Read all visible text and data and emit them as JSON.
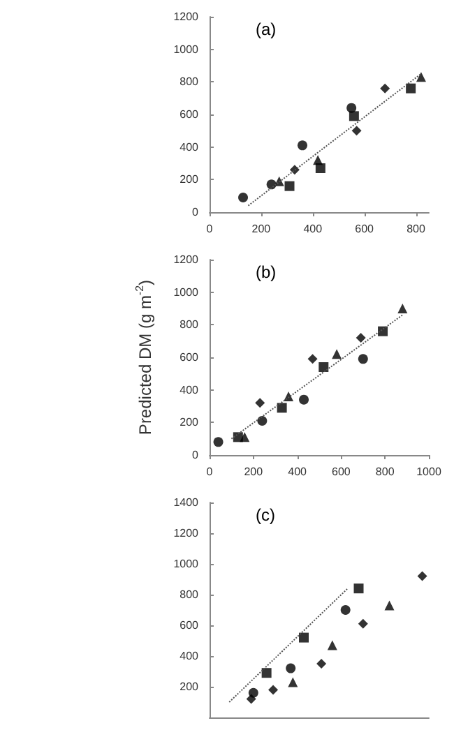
{
  "chart_data": [
    {
      "type": "scatter",
      "title": "(a)",
      "xlim": [
        0,
        850
      ],
      "xticks": [
        0,
        200,
        400,
        600,
        800
      ],
      "ylim": [
        0,
        1200
      ],
      "yticks": [
        0,
        200,
        400,
        600,
        800,
        1000,
        1200
      ],
      "grid": false,
      "series": [
        {
          "color": "#000000",
          "marker": "circle",
          "x": [
            130,
            240,
            360,
            550
          ],
          "values": [
            90,
            170,
            410,
            640
          ]
        },
        {
          "color": "#000000",
          "marker": "triangle",
          "x": [
            270,
            420,
            820
          ],
          "values": [
            190,
            320,
            830
          ]
        },
        {
          "color": "#000000",
          "marker": "square",
          "x": [
            310,
            430,
            560,
            780
          ],
          "values": [
            160,
            270,
            590,
            760
          ]
        },
        {
          "color": "#000000",
          "marker": "diamond",
          "x": [
            330,
            570,
            680
          ],
          "values": [
            260,
            500,
            760
          ]
        },
        {
          "type": "line",
          "color": "#555555",
          "marker": "none",
          "line_style": "dotted",
          "x": [
            150,
            820
          ],
          "values": [
            40,
            850
          ]
        }
      ]
    },
    {
      "type": "scatter",
      "title": "(b)",
      "ylabel": "Predicted DM (g m$^{-2}$)",
      "xlim": [
        0,
        1000
      ],
      "xticks": [
        0,
        200,
        400,
        600,
        800,
        1000
      ],
      "ylim": [
        0,
        1200
      ],
      "yticks": [
        0,
        200,
        400,
        600,
        800,
        1000,
        1200
      ],
      "grid": false,
      "series": [
        {
          "color": "#000000",
          "marker": "circle",
          "x": [
            40,
            240,
            430,
            700
          ],
          "values": [
            80,
            210,
            340,
            590
          ]
        },
        {
          "color": "#000000",
          "marker": "square",
          "x": [
            130,
            330,
            520,
            790
          ],
          "values": [
            110,
            290,
            540,
            760
          ]
        },
        {
          "color": "#000000",
          "marker": "triangle",
          "x": [
            160,
            360,
            580,
            880
          ],
          "values": [
            110,
            360,
            620,
            900
          ]
        },
        {
          "color": "#000000",
          "marker": "diamond",
          "x": [
            230,
            470,
            690
          ],
          "values": [
            320,
            590,
            720
          ]
        },
        {
          "type": "line",
          "color": "#555555",
          "marker": "none",
          "line_style": "dotted",
          "x": [
            100,
            880
          ],
          "values": [
            100,
            860
          ]
        }
      ]
    },
    {
      "type": "scatter",
      "title": "(c)",
      "xlim": [
        0,
        1000
      ],
      "ylim": [
        0,
        1400
      ],
      "yticks": [
        200,
        400,
        600,
        800,
        1000,
        1200,
        1400
      ],
      "tick_labels": "y",
      "grid": false,
      "series": [
        {
          "color": "#000000",
          "marker": "circle",
          "x": [
            200,
            370,
            620
          ],
          "values": [
            160,
            320,
            700
          ]
        },
        {
          "color": "#000000",
          "marker": "square",
          "x": [
            260,
            430,
            680
          ],
          "values": [
            290,
            520,
            840
          ]
        },
        {
          "color": "#000000",
          "marker": "triangle",
          "x": [
            380,
            560,
            820
          ],
          "values": [
            230,
            470,
            730
          ]
        },
        {
          "color": "#000000",
          "marker": "diamond",
          "x": [
            190,
            290,
            510,
            700,
            970
          ],
          "values": [
            120,
            180,
            350,
            610,
            920
          ]
        },
        {
          "type": "line",
          "color": "#555555",
          "marker": "none",
          "line_style": "dotted",
          "x": [
            90,
            630
          ],
          "values": [
            100,
            840
          ]
        }
      ]
    }
  ]
}
